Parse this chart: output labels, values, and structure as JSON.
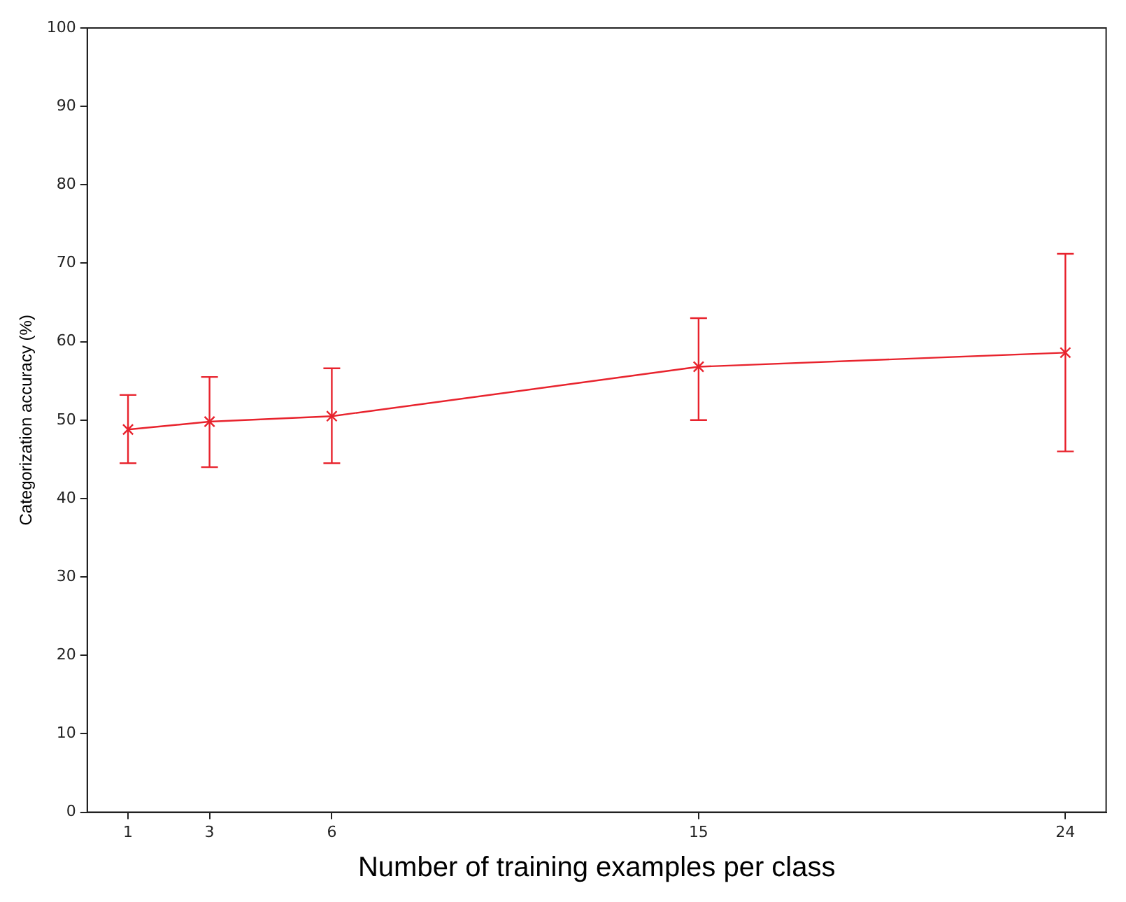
{
  "chart_data": {
    "type": "line",
    "xlabel": "Number of training examples per class",
    "ylabel": "Categorization accuracy (%)",
    "x": [
      1,
      3,
      6,
      15,
      24
    ],
    "series": [
      {
        "color": "#e8232d",
        "values": [
          48.8,
          49.8,
          50.5,
          56.8,
          58.6
        ],
        "errors": [
          [
            44.5,
            53.2
          ],
          [
            44,
            55.5
          ],
          [
            44.5,
            56.6
          ],
          [
            50,
            63
          ],
          [
            46,
            71.2
          ]
        ]
      }
    ],
    "xlim": [
      0,
      25
    ],
    "xticks": [
      1,
      3,
      6,
      15,
      24
    ],
    "ylim": [
      0,
      100
    ],
    "yticks": [
      0,
      10,
      20,
      30,
      40,
      50,
      60,
      70,
      80,
      90,
      100
    ],
    "grid": false,
    "legend": false,
    "marker": "cross",
    "line_style": "solid"
  }
}
